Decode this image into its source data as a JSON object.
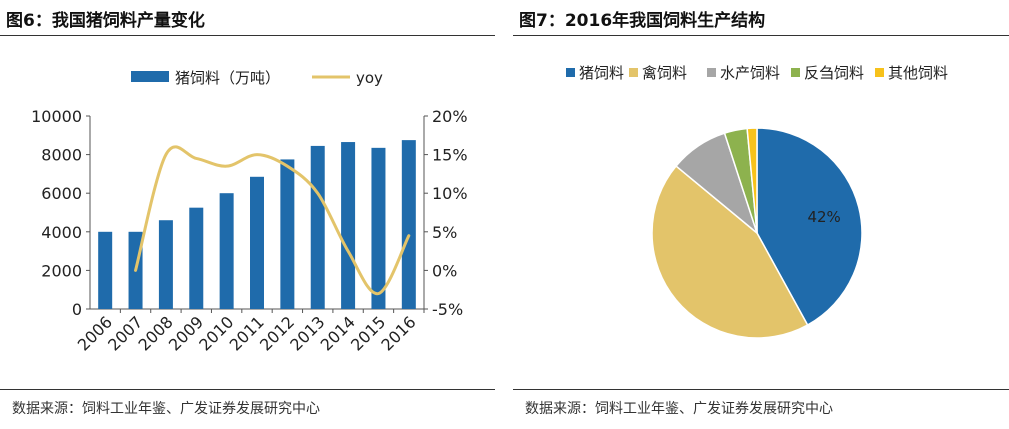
{
  "left": {
    "title": "图6：我国猪饲料产量变化",
    "source": "数据来源：饲料工业年鉴、广发证券发展研究中心"
  },
  "right": {
    "title": "图7：2016年我国饲料生产结构",
    "source": "数据来源：饲料工业年鉴、广发证券发展研究中心"
  },
  "chart_data": [
    {
      "type": "bar",
      "categories": [
        "2006",
        "2007",
        "2008",
        "2009",
        "2010",
        "2011",
        "2012",
        "2013",
        "2014",
        "2015",
        "2016"
      ],
      "series": [
        {
          "name": "猪饲料（万吨）",
          "type": "bar",
          "axis": "left",
          "color": "#1f6bab",
          "values": [
            4000,
            4000,
            4600,
            5250,
            6000,
            6850,
            7750,
            8450,
            8650,
            8350,
            8750
          ]
        },
        {
          "name": "yoy",
          "type": "line",
          "axis": "right",
          "color": "#e3c46a",
          "values": [
            null,
            0.0,
            15.0,
            14.5,
            13.5,
            15.0,
            13.5,
            10.0,
            2.5,
            -3.0,
            4.5
          ]
        }
      ],
      "yleft": {
        "min": 0,
        "max": 10000,
        "ticks": [
          "0",
          "2000",
          "4000",
          "6000",
          "8000",
          "10000"
        ]
      },
      "yright": {
        "min": -5,
        "max": 20,
        "ticks": [
          "-5%",
          "0%",
          "5%",
          "10%",
          "15%",
          "20%"
        ]
      },
      "legend": "top-center",
      "grid": false
    },
    {
      "type": "pie",
      "labels": [
        "猪饲料",
        "禽饲料",
        "水产饲料",
        "反刍饲料",
        "其他饲料"
      ],
      "values": [
        42,
        44,
        9,
        3.5,
        1.5
      ],
      "colors": [
        "#1f6bab",
        "#e3c46a",
        "#a6a6a6",
        "#8db24e",
        "#f7c21b"
      ],
      "data_labels": [
        "42%",
        "",
        "",
        "",
        ""
      ],
      "legend": "top"
    }
  ]
}
